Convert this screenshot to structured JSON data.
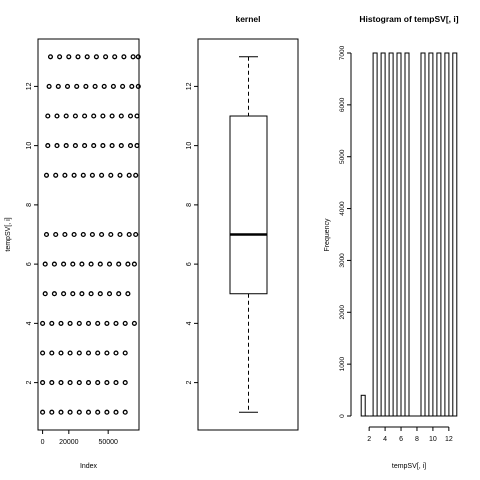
{
  "colors": {
    "foreground": "#000000",
    "background": "#ffffff"
  },
  "chart_data": [
    {
      "type": "scatter",
      "title": "",
      "xlabel": "Index",
      "ylabel": "tempSV[, i]",
      "xlim": [
        -3500,
        73500
      ],
      "ylim": [
        0.4,
        13.6
      ],
      "x_ticks": [
        0,
        20000,
        50000
      ],
      "x_tick_labels": [
        "0",
        "20000",
        "50000"
      ],
      "y_ticks": [
        2,
        4,
        6,
        8,
        10,
        12
      ],
      "y_tick_labels": [
        "2",
        "4",
        "6",
        "8",
        "10",
        "12"
      ],
      "marker": "open-circle",
      "series": [
        {
          "y": 1,
          "x": [
            0,
            7000,
            14000,
            21000,
            28000,
            35000,
            42000,
            49000,
            56000,
            63000
          ]
        },
        {
          "y": 2,
          "x": [
            0,
            7000,
            14000,
            21000,
            28000,
            35000,
            42000,
            49000,
            56000,
            63000
          ]
        },
        {
          "y": 3,
          "x": [
            0,
            7000,
            14000,
            21000,
            28000,
            35000,
            42000,
            49000,
            56000,
            63000
          ]
        },
        {
          "y": 4,
          "x": [
            0,
            7000,
            14000,
            21000,
            28000,
            35000,
            42000,
            49000,
            56000,
            63000,
            70000
          ]
        },
        {
          "y": 5,
          "x": [
            2000,
            9000,
            16000,
            23000,
            30000,
            37000,
            44000,
            51000,
            58000,
            65000
          ]
        },
        {
          "y": 6,
          "x": [
            2000,
            9000,
            16000,
            23000,
            30000,
            37000,
            44000,
            51000,
            58000,
            65000,
            70000
          ]
        },
        {
          "y": 7,
          "x": [
            3000,
            10000,
            17000,
            24000,
            31000,
            38000,
            45000,
            52000,
            59000,
            66000,
            71000
          ]
        },
        {
          "y": 9,
          "x": [
            3000,
            10000,
            17000,
            24000,
            31000,
            38000,
            45000,
            52000,
            59000,
            66000,
            71000
          ]
        },
        {
          "y": 10,
          "x": [
            4000,
            11000,
            18000,
            25000,
            32000,
            39000,
            46000,
            53000,
            60000,
            67000,
            72000
          ]
        },
        {
          "y": 11,
          "x": [
            4000,
            11000,
            18000,
            25000,
            32000,
            39000,
            46000,
            53000,
            60000,
            67000,
            72000
          ]
        },
        {
          "y": 12,
          "x": [
            5000,
            12000,
            19000,
            26000,
            33000,
            40000,
            47000,
            54000,
            61000,
            68000,
            73000
          ]
        },
        {
          "y": 13,
          "x": [
            6000,
            13000,
            20000,
            27000,
            34000,
            41000,
            48000,
            55000,
            62000,
            69000,
            73000
          ]
        }
      ]
    },
    {
      "type": "boxplot",
      "title": "kernel",
      "xlabel": "",
      "ylabel": "",
      "ylim": [
        0.4,
        13.6
      ],
      "y_ticks": [
        2,
        4,
        6,
        8,
        10,
        12
      ],
      "y_tick_labels": [
        "2",
        "4",
        "6",
        "8",
        "10",
        "12"
      ],
      "min": 1,
      "q1": 5,
      "median": 7,
      "q3": 11,
      "max": 13
    },
    {
      "type": "bar",
      "subtype": "histogram",
      "title": "Histogram of tempSV[, i]",
      "xlabel": "tempSV[, i]",
      "ylabel": "Frequency",
      "xlim": [
        0.6,
        13.4
      ],
      "ylim": [
        0,
        7000
      ],
      "x_ticks": [
        2,
        4,
        6,
        8,
        10,
        12
      ],
      "x_tick_labels": [
        "2",
        "4",
        "6",
        "8",
        "10",
        "12"
      ],
      "y_ticks": [
        0,
        1000,
        2000,
        3000,
        4000,
        5000,
        6000,
        7000
      ],
      "y_tick_labels": [
        "0",
        "1000",
        "2000",
        "3000",
        "4000",
        "5000",
        "6000",
        "7000"
      ],
      "bin_width": 0.5,
      "breaks": [
        1.0,
        1.5,
        2.0,
        2.5,
        3.0,
        3.5,
        4.0,
        4.5,
        5.0,
        5.5,
        6.0,
        6.5,
        7.0,
        7.5,
        8.0,
        8.5,
        9.0,
        9.5,
        10.0,
        10.5,
        11.0,
        11.5,
        12.0,
        12.5,
        13.0
      ],
      "values": [
        400,
        0,
        0,
        7000,
        0,
        7000,
        0,
        7000,
        0,
        7000,
        0,
        7000,
        0,
        0,
        0,
        7000,
        0,
        7000,
        0,
        7000,
        0,
        7000,
        0,
        7000
      ]
    }
  ]
}
